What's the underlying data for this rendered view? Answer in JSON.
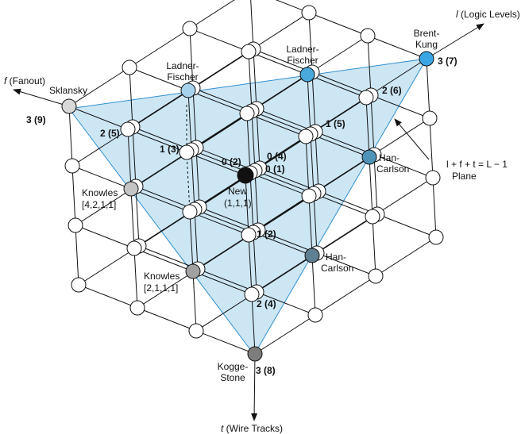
{
  "axes": {
    "l": {
      "var": "l",
      "label": " (Logic Levels)"
    },
    "f": {
      "var": "f",
      "label": " (Fanout)"
    },
    "t": {
      "var": "t",
      "label": " (Wire Tracks)"
    }
  },
  "plane": {
    "line1": "l + f + t = L − 1",
    "line2": "Plane"
  },
  "colors": {
    "plane_fill": "#cde6f4",
    "plane_edge": "#2f8fcf",
    "node_white": "#ffffff",
    "node_black": "#111111",
    "brent_kung": "#3aa6e6",
    "ladner_fischer_top": "#49a8dc",
    "ladner_fischer_left": "#a7d2ee",
    "han_carlson_upper": "#4f93b8",
    "han_carlson_lower": "#5f7f92",
    "sklansky": "#d8d8d8",
    "knowles_421": "#c4c4c4",
    "knowles_211": "#a1a1a1",
    "kogge_stone": "#7d7d7d"
  },
  "named": {
    "brent_kung": [
      "Brent-",
      "Kung"
    ],
    "ladner_fischer_top": [
      "Ladner-",
      "Fischer"
    ],
    "ladner_fischer_left": [
      "Ladner-",
      "Fischer"
    ],
    "sklansky": [
      "Sklansky"
    ],
    "han_carlson_upper": [
      "Han-",
      "Carlson"
    ],
    "han_carlson_lower": [
      "Han-",
      "Carlson"
    ],
    "knowles_421": [
      "Knowles",
      "[4,2,1,1]"
    ],
    "knowles_211": [
      "Knowles",
      "[2,1,1,1]"
    ],
    "kogge_stone": [
      "Kogge-",
      "Stone"
    ],
    "new": [
      "New",
      "(1,1,1)"
    ]
  },
  "coords": {
    "brent_kung": "3 (7)",
    "l_two": "2 (6)",
    "l_one": "1 (5)",
    "l_zero": "0 (4)",
    "sklansky": "3 (9)",
    "f_two": "2 (5)",
    "f_one": "1 (3)",
    "f_zero": "0 (2)",
    "origin": "0 (1)",
    "t_one": "1 (2)",
    "t_two": "2 (4)",
    "kogge_stone": "3 (8)"
  }
}
